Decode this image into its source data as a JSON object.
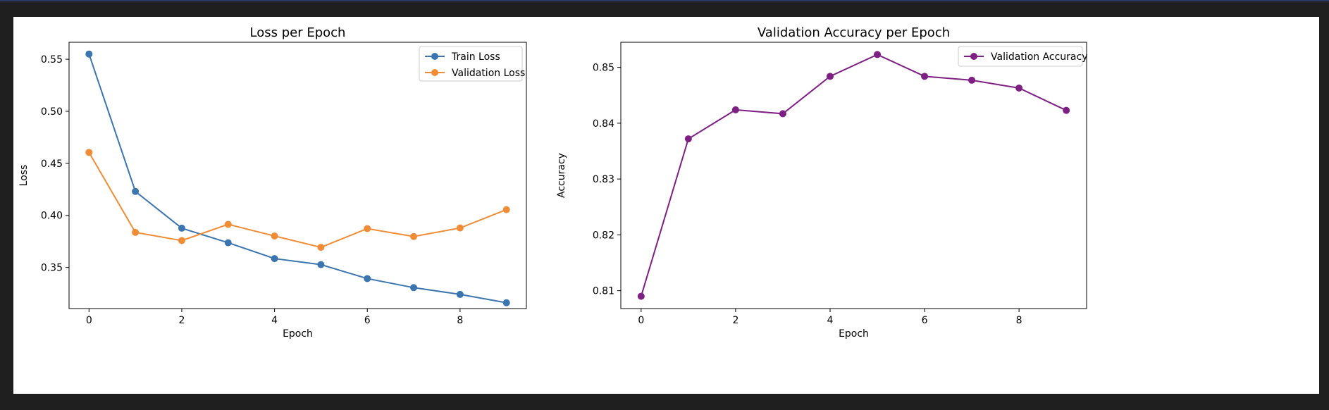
{
  "colors": {
    "train": "#3a75b0",
    "validation_loss": "#f08c35",
    "validation_accuracy": "#7e1f84"
  },
  "chart_data": [
    {
      "type": "line",
      "title": "Loss per Epoch",
      "xlabel": "Epoch",
      "ylabel": "Loss",
      "x": [
        0,
        1,
        2,
        3,
        4,
        5,
        6,
        7,
        8,
        9
      ],
      "xticks": [
        0,
        2,
        4,
        6,
        8
      ],
      "yticks": [
        0.35,
        0.4,
        0.45,
        0.5,
        0.55
      ],
      "ytick_labels": [
        "0.35",
        "0.40",
        "0.45",
        "0.50",
        "0.55"
      ],
      "xlim": [
        -0.43,
        9.43
      ],
      "ylim": [
        0.3105,
        0.5663
      ],
      "grid": false,
      "legend": "upper-right",
      "series": [
        {
          "name": "Train Loss",
          "color": "#3a75b0",
          "values": [
            0.555,
            0.423,
            0.3877,
            0.3737,
            0.3585,
            0.3527,
            0.3393,
            0.3306,
            0.3241,
            0.3161
          ]
        },
        {
          "name": "Validation Loss",
          "color": "#f08c35",
          "values": [
            0.4605,
            0.3837,
            0.3758,
            0.3914,
            0.3802,
            0.3693,
            0.3873,
            0.3797,
            0.3879,
            0.4055
          ]
        }
      ]
    },
    {
      "type": "line",
      "title": "Validation Accuracy per Epoch",
      "xlabel": "Epoch",
      "ylabel": "Accuracy",
      "x": [
        0,
        1,
        2,
        3,
        4,
        5,
        6,
        7,
        8,
        9
      ],
      "xticks": [
        0,
        2,
        4,
        6,
        8
      ],
      "yticks": [
        0.81,
        0.82,
        0.83,
        0.84,
        0.85
      ],
      "ytick_labels": [
        "0.81",
        "0.82",
        "0.83",
        "0.84",
        "0.85"
      ],
      "xlim": [
        -0.43,
        9.43
      ],
      "ylim": [
        0.8068,
        0.8545
      ],
      "grid": false,
      "legend": "upper-right",
      "series": [
        {
          "name": "Validation Accuracy",
          "color": "#7e1f84",
          "values": [
            0.809,
            0.8372,
            0.8424,
            0.8417,
            0.8484,
            0.8523,
            0.8484,
            0.8477,
            0.8463,
            0.8423
          ]
        }
      ]
    }
  ]
}
